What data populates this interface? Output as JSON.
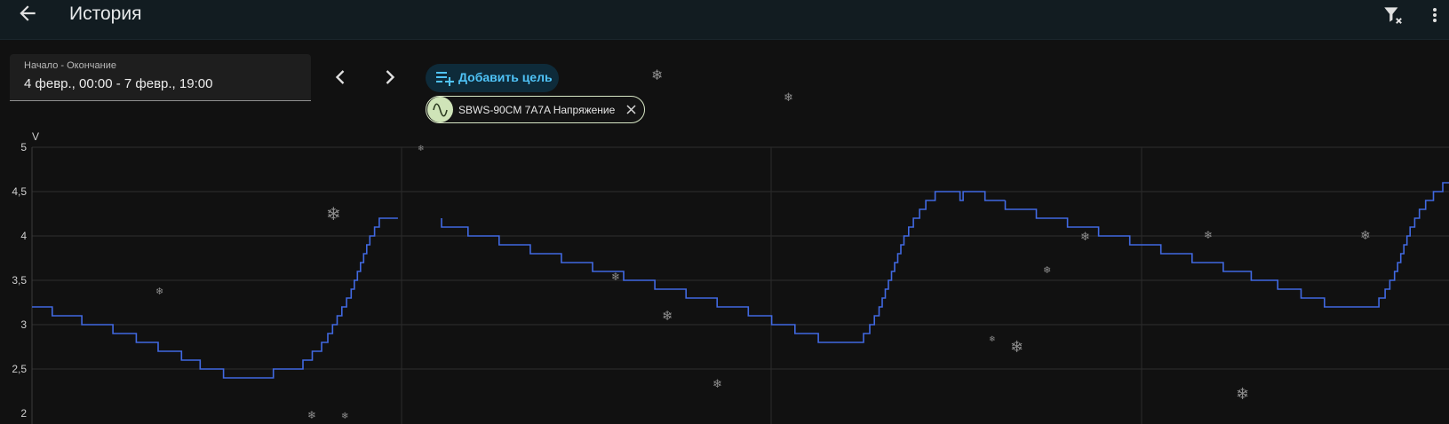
{
  "header": {
    "title": "История",
    "back_icon": "arrow-left-icon",
    "filter_icon": "filter-remove-icon",
    "menu_icon": "dots-vertical-icon"
  },
  "date_range": {
    "label": "Начало - Окончание",
    "value": "4 февр., 00:00 - 7 февр., 19:00"
  },
  "add_target": {
    "label": "Добавить цель",
    "icon": "playlist-plus-icon"
  },
  "target_chip": {
    "label": "SBWS-90CM 7A7A Напряжение",
    "icon": "sine-wave-icon",
    "remove_icon": "close-icon"
  },
  "colors": {
    "accent": "#4fc3f7",
    "series": "#4169e1",
    "chip_avatar": "#cfe4b8"
  },
  "chart_data": {
    "type": "line",
    "ylabel": "V",
    "ylim": [
      2,
      5
    ],
    "yticks": [
      "5",
      "4,5",
      "4",
      "3,5",
      "3",
      "2,5"
    ],
    "grid": true,
    "x_range_hours": [
      0,
      91
    ],
    "series": [
      {
        "segments": [
          [
            [
              0,
              3.2
            ],
            [
              1.3,
              3.2
            ],
            [
              1.3,
              3.1
            ],
            [
              3.2,
              3.1
            ],
            [
              3.2,
              3.0
            ],
            [
              5.2,
              3.0
            ],
            [
              5.2,
              2.9
            ],
            [
              6.7,
              2.9
            ],
            [
              6.7,
              2.8
            ],
            [
              8.1,
              2.8
            ],
            [
              8.1,
              2.7
            ],
            [
              9.6,
              2.7
            ],
            [
              9.6,
              2.6
            ],
            [
              10.8,
              2.6
            ],
            [
              10.8,
              2.5
            ],
            [
              12.3,
              2.5
            ],
            [
              12.3,
              2.4
            ],
            [
              15.5,
              2.4
            ],
            [
              15.5,
              2.5
            ],
            [
              17.4,
              2.5
            ],
            [
              17.4,
              2.6
            ],
            [
              18.0,
              2.6
            ],
            [
              18.0,
              2.7
            ],
            [
              18.6,
              2.7
            ],
            [
              18.6,
              2.8
            ],
            [
              19.0,
              2.8
            ],
            [
              19.0,
              2.9
            ],
            [
              19.3,
              2.9
            ],
            [
              19.3,
              3.0
            ],
            [
              19.6,
              3.0
            ],
            [
              19.6,
              3.1
            ],
            [
              19.9,
              3.1
            ],
            [
              19.9,
              3.2
            ],
            [
              20.2,
              3.2
            ],
            [
              20.2,
              3.3
            ],
            [
              20.5,
              3.3
            ],
            [
              20.5,
              3.4
            ],
            [
              20.7,
              3.4
            ],
            [
              20.7,
              3.5
            ],
            [
              20.9,
              3.5
            ],
            [
              20.9,
              3.6
            ],
            [
              21.1,
              3.6
            ],
            [
              21.1,
              3.7
            ],
            [
              21.3,
              3.7
            ],
            [
              21.3,
              3.8
            ],
            [
              21.5,
              3.8
            ],
            [
              21.5,
              3.9
            ],
            [
              21.7,
              3.9
            ],
            [
              21.7,
              4.0
            ],
            [
              22.0,
              4.0
            ],
            [
              22.0,
              4.1
            ],
            [
              22.3,
              4.1
            ],
            [
              22.3,
              4.2
            ],
            [
              23.5,
              4.2
            ]
          ],
          [
            [
              26.3,
              4.2
            ],
            [
              26.3,
              4.1
            ],
            [
              28.0,
              4.1
            ],
            [
              28.0,
              4.0
            ],
            [
              30.0,
              4.0
            ],
            [
              30.0,
              3.9
            ],
            [
              32.0,
              3.9
            ],
            [
              32.0,
              3.8
            ],
            [
              34.0,
              3.8
            ],
            [
              34.0,
              3.7
            ],
            [
              36.0,
              3.7
            ],
            [
              36.0,
              3.6
            ],
            [
              38.0,
              3.6
            ],
            [
              38.0,
              3.5
            ],
            [
              40.0,
              3.5
            ],
            [
              40.0,
              3.4
            ],
            [
              42.0,
              3.4
            ],
            [
              42.0,
              3.3
            ],
            [
              44.0,
              3.3
            ],
            [
              44.0,
              3.2
            ],
            [
              46.0,
              3.2
            ],
            [
              46.0,
              3.1
            ],
            [
              47.5,
              3.1
            ],
            [
              47.5,
              3.0
            ],
            [
              49.0,
              3.0
            ],
            [
              49.0,
              2.9
            ],
            [
              50.5,
              2.9
            ],
            [
              50.5,
              2.8
            ],
            [
              53.4,
              2.8
            ],
            [
              53.4,
              2.9
            ],
            [
              53.8,
              2.9
            ],
            [
              53.8,
              3.0
            ],
            [
              54.1,
              3.0
            ],
            [
              54.1,
              3.1
            ],
            [
              54.4,
              3.1
            ],
            [
              54.4,
              3.2
            ],
            [
              54.6,
              3.2
            ],
            [
              54.6,
              3.3
            ],
            [
              54.8,
              3.3
            ],
            [
              54.8,
              3.4
            ],
            [
              55.0,
              3.4
            ],
            [
              55.0,
              3.5
            ],
            [
              55.2,
              3.5
            ],
            [
              55.2,
              3.6
            ],
            [
              55.4,
              3.6
            ],
            [
              55.4,
              3.7
            ],
            [
              55.6,
              3.7
            ],
            [
              55.6,
              3.8
            ],
            [
              55.8,
              3.8
            ],
            [
              55.8,
              3.9
            ],
            [
              56.0,
              3.9
            ],
            [
              56.0,
              4.0
            ],
            [
              56.3,
              4.0
            ],
            [
              56.3,
              4.1
            ],
            [
              56.6,
              4.1
            ],
            [
              56.6,
              4.2
            ],
            [
              57.0,
              4.2
            ],
            [
              57.0,
              4.3
            ],
            [
              57.4,
              4.3
            ],
            [
              57.4,
              4.4
            ],
            [
              58.0,
              4.4
            ],
            [
              58.0,
              4.5
            ],
            [
              59.6,
              4.5
            ],
            [
              59.6,
              4.4
            ],
            [
              59.8,
              4.4
            ],
            [
              59.8,
              4.5
            ],
            [
              61.2,
              4.5
            ],
            [
              61.2,
              4.4
            ],
            [
              62.5,
              4.4
            ]
          ]
        ]
      }
    ]
  }
}
